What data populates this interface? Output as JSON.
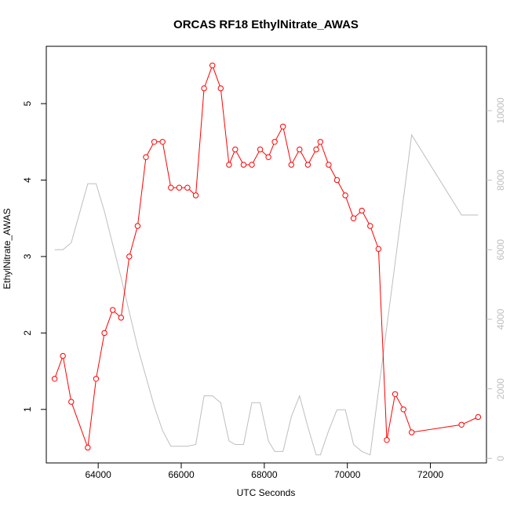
{
  "chart_data": {
    "type": "line",
    "title": "ORCAS RF18 EthylNitrate_AWAS",
    "xlabel": "UTC Seconds",
    "ylabel": "EthylNitrate_AWAS",
    "xlim": [
      62750,
      73350
    ],
    "ylim": [
      0.3,
      5.75
    ],
    "y2lim": [
      -130,
      11850
    ],
    "xticks": [
      64000,
      66000,
      68000,
      70000,
      72000
    ],
    "yticks": [
      1,
      2,
      3,
      4,
      5
    ],
    "y2ticks": [
      0,
      2000,
      4000,
      6000,
      8000,
      10000
    ],
    "grid": false,
    "series": [
      {
        "name": "",
        "color": "#ff0000",
        "marker": "open-circle",
        "axis": "left",
        "x": [
          62950,
          63150,
          63350,
          63750,
          63950,
          64150,
          64350,
          64550,
          64750,
          64950,
          65150,
          65350,
          65550,
          65750,
          65950,
          66150,
          66350,
          66550,
          66750,
          66950,
          67150,
          67300,
          67500,
          67700,
          67900,
          68100,
          68250,
          68450,
          68650,
          68850,
          69050,
          69250,
          69350,
          69550,
          69750,
          69950,
          70150,
          70350,
          70550,
          70750,
          70950,
          71150,
          71350,
          71550,
          72750,
          73150
        ],
        "values": [
          1.4,
          1.7,
          1.1,
          0.5,
          1.4,
          2.0,
          2.3,
          2.2,
          3.0,
          3.4,
          4.3,
          4.5,
          4.5,
          3.9,
          3.9,
          3.9,
          3.8,
          5.2,
          5.5,
          5.2,
          4.2,
          4.4,
          4.2,
          4.2,
          4.4,
          4.3,
          4.5,
          4.7,
          4.2,
          4.4,
          4.2,
          4.4,
          4.5,
          4.2,
          4.0,
          3.8,
          3.5,
          3.6,
          3.4,
          3.1,
          0.6,
          1.2,
          1.0,
          0.7,
          0.8,
          0.9
        ]
      },
      {
        "name": "",
        "color": "#bebebe",
        "axis": "right",
        "x": [
          62950,
          63150,
          63350,
          63750,
          63950,
          64150,
          64550,
          64950,
          65350,
          65550,
          65750,
          65950,
          66150,
          66350,
          66550,
          66750,
          66950,
          67150,
          67300,
          67500,
          67700,
          67900,
          68100,
          68250,
          68450,
          68650,
          68850,
          69050,
          69250,
          69350,
          69550,
          69750,
          69950,
          70150,
          70350,
          70550,
          71550,
          72750,
          73150
        ],
        "values": [
          6000,
          6000,
          6200,
          7900,
          7900,
          7100,
          5200,
          3200,
          1500,
          800,
          350,
          350,
          350,
          400,
          1800,
          1800,
          1600,
          500,
          400,
          400,
          1600,
          1600,
          500,
          200,
          200,
          1200,
          1800,
          900,
          100,
          100,
          800,
          1400,
          1400,
          400,
          200,
          100,
          9300,
          7000,
          7000
        ]
      }
    ]
  }
}
